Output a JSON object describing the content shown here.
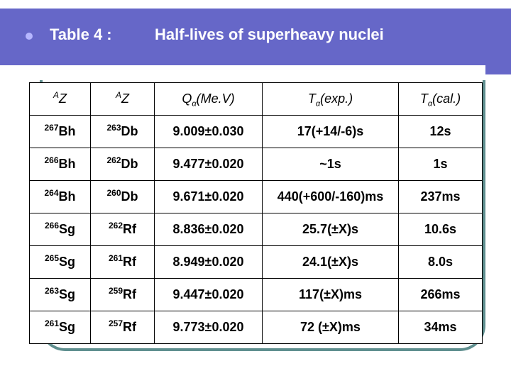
{
  "header": {
    "bullet_icon": "circle-bullet-icon",
    "title_prefix": "Table 4 :",
    "title": "Half-lives of superheavy nuclei"
  },
  "table": {
    "columns": [
      {
        "sup": "A",
        "main": "Z",
        "sub": ""
      },
      {
        "sup": "A",
        "main": "Z",
        "sub": ""
      },
      {
        "sup": "",
        "main": "Q",
        "sub": "α",
        "rest": "(Me.V)"
      },
      {
        "sup": "",
        "main": "T",
        "sub": "α",
        "rest": "(exp.)"
      },
      {
        "sup": "",
        "main": "T",
        "sub": "α",
        "rest": "(cal.)"
      }
    ],
    "rows": [
      {
        "parent_a": "267",
        "parent": "Bh",
        "daughter_a": "263",
        "daughter": "Db",
        "q": "9.009±0.030",
        "t_exp": "17(+14/-6)s",
        "t_cal": "12s"
      },
      {
        "parent_a": "266",
        "parent": "Bh",
        "daughter_a": "262",
        "daughter": "Db",
        "q": "9.477±0.020",
        "t_exp": "~1s",
        "t_cal": "1s"
      },
      {
        "parent_a": "264",
        "parent": "Bh",
        "daughter_a": "260",
        "daughter": "Db",
        "q": "9.671±0.020",
        "t_exp": "440(+600/-160)ms",
        "t_cal": "237ms"
      },
      {
        "parent_a": "266",
        "parent": "Sg",
        "daughter_a": "262",
        "daughter": "Rf",
        "q": "8.836±0.020",
        "t_exp": "25.7(±X)s",
        "t_cal": "10.6s"
      },
      {
        "parent_a": "265",
        "parent": "Sg",
        "daughter_a": "261",
        "daughter": "Rf",
        "q": "8.949±0.020",
        "t_exp": "24.1(±X)s",
        "t_cal": "8.0s"
      },
      {
        "parent_a": "263",
        "parent": "Sg",
        "daughter_a": "259",
        "daughter": "Rf",
        "q": "9.447±0.020",
        "t_exp": "117(±X)ms",
        "t_cal": "266ms"
      },
      {
        "parent_a": "261",
        "parent": "Sg",
        "daughter_a": "257",
        "daughter": "Rf",
        "q": "9.773±0.020",
        "t_exp": "72 (±X)ms",
        "t_cal": "34ms"
      }
    ]
  },
  "colors": {
    "header_band": "#6667c8",
    "frame": "#5f8f8f",
    "text": "#000000"
  }
}
